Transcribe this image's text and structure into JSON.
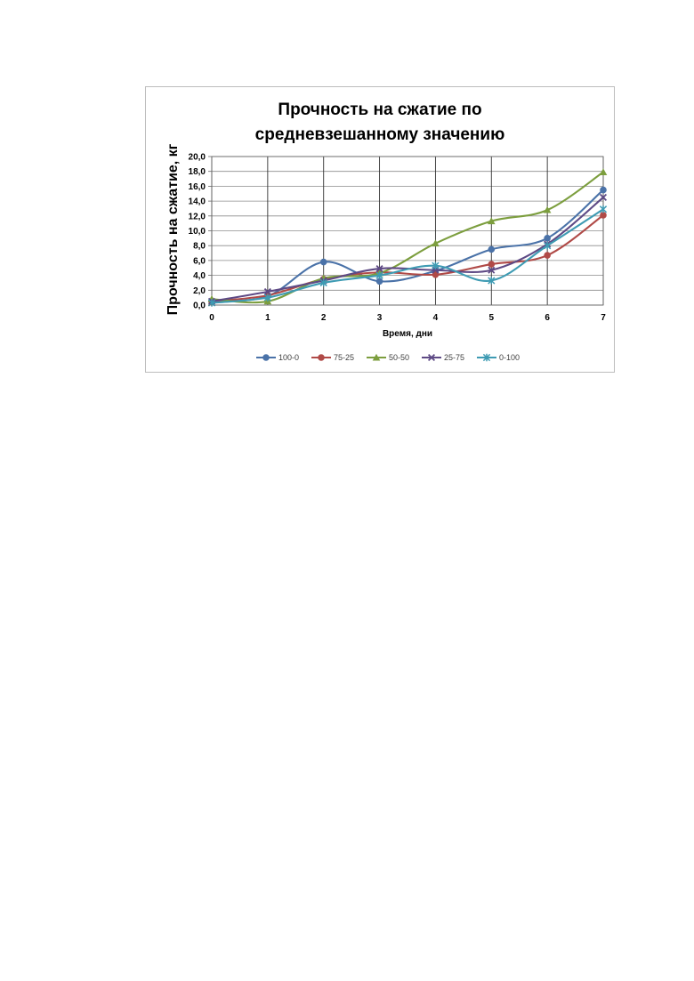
{
  "chart_data": {
    "type": "line",
    "title": "Прочность на сжатие по средневзешанному значению",
    "title_lines": [
      "Прочность на сжатие по",
      "средневзешанному значению"
    ],
    "xlabel": "Время, дни",
    "ylabel": "Прочность на сжатие, кг",
    "x": [
      0,
      1,
      2,
      3,
      4,
      5,
      6,
      7
    ],
    "x_ticks": [
      "0",
      "1",
      "2",
      "3",
      "4",
      "5",
      "6",
      "7"
    ],
    "y_ticks": [
      "0,0",
      "2,0",
      "4,0",
      "6,0",
      "8,0",
      "10,0",
      "12,0",
      "14,0",
      "16,0",
      "18,0",
      "20,0"
    ],
    "xlim": [
      0,
      7
    ],
    "ylim": [
      0,
      20
    ],
    "grid": true,
    "legend_position": "bottom",
    "smooth": true,
    "series": [
      {
        "name": "100-0",
        "color": "#4a72a8",
        "marker": "circle",
        "values": [
          0.5,
          1.2,
          5.8,
          3.2,
          4.6,
          7.5,
          9.0,
          15.5
        ]
      },
      {
        "name": "75-25",
        "color": "#b04a47",
        "marker": "circle",
        "values": [
          0.5,
          1.3,
          3.5,
          4.4,
          4.1,
          5.5,
          6.7,
          12.1
        ]
      },
      {
        "name": "50-50",
        "color": "#7c9e3e",
        "marker": "triangle",
        "values": [
          0.8,
          0.5,
          3.6,
          4.3,
          8.3,
          11.3,
          12.8,
          17.9
        ]
      },
      {
        "name": "25-75",
        "color": "#5e4a85",
        "marker": "x",
        "values": [
          0.5,
          1.8,
          3.3,
          4.9,
          4.7,
          4.7,
          8.2,
          14.5
        ]
      },
      {
        "name": "0-100",
        "color": "#3e9bb3",
        "marker": "star",
        "values": [
          0.3,
          1.0,
          3.0,
          4.0,
          5.3,
          3.3,
          8.0,
          12.9
        ]
      }
    ]
  }
}
